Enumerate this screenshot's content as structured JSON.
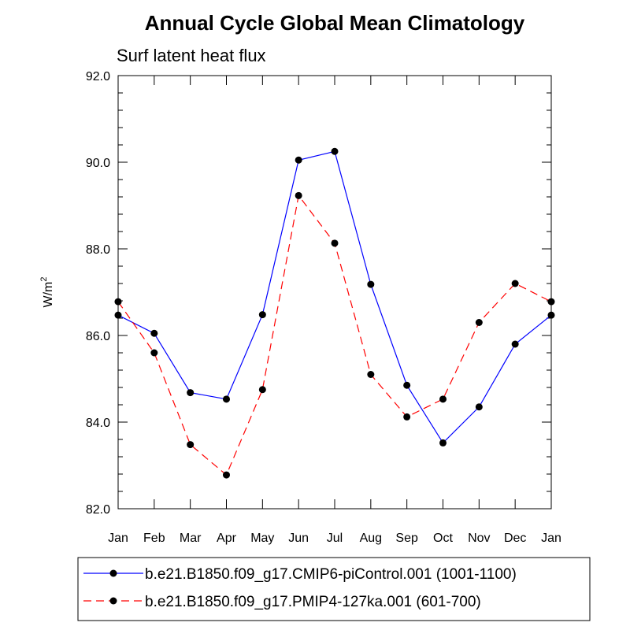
{
  "chart_data": {
    "type": "line",
    "title": "Annual Cycle Global Mean Climatology",
    "subtitle": "Surf latent heat flux",
    "ylabel": "W/m",
    "ylabel_superscript": "2",
    "x": [
      "Jan",
      "Feb",
      "Mar",
      "Apr",
      "May",
      "Jun",
      "Jul",
      "Aug",
      "Sep",
      "Oct",
      "Nov",
      "Dec",
      "Jan"
    ],
    "ylim": [
      82.0,
      92.0
    ],
    "yticks": [
      "82.0",
      "84.0",
      "86.0",
      "88.0",
      "90.0",
      "92.0"
    ],
    "grid": false,
    "legend_placement": "bottom",
    "series": [
      {
        "name": "b.e21.B1850.f09_g17.CMIP6-piControl.001 (1001-1100)",
        "color": "#0000ff",
        "line_style": "solid",
        "marker": "filled-circle",
        "values": [
          86.47,
          86.05,
          84.68,
          84.53,
          86.48,
          90.05,
          90.25,
          87.18,
          84.85,
          83.52,
          84.35,
          85.8,
          86.47
        ]
      },
      {
        "name": "b.e21.B1850.f09_g17.PMIP4-127ka.001 (601-700)",
        "color": "#ff0000",
        "line_style": "dashed",
        "marker": "filled-circle",
        "values": [
          86.78,
          85.6,
          83.48,
          82.78,
          84.75,
          89.23,
          88.13,
          85.1,
          84.12,
          84.53,
          86.3,
          87.2,
          86.78
        ]
      }
    ]
  }
}
